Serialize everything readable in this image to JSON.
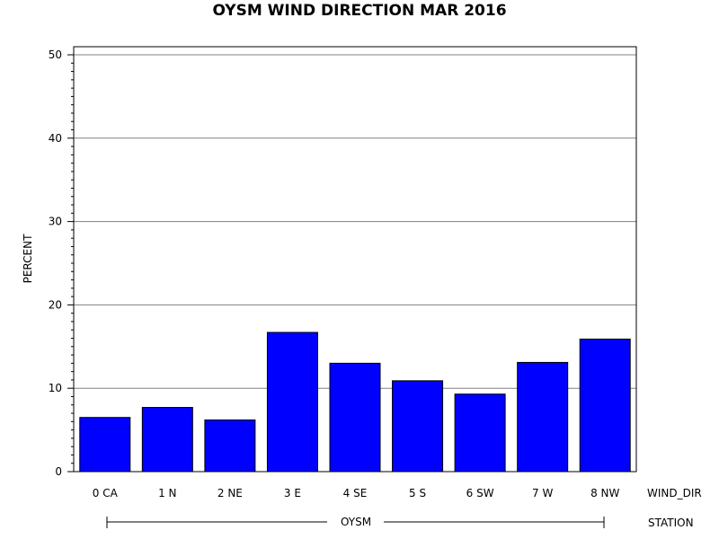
{
  "chart_data": {
    "type": "bar",
    "title": "OYSM WIND DIRECTION MAR 2016",
    "ylabel": "PERCENT",
    "xlabel": "WIND_DIR",
    "group_label": "STATION",
    "group_value": "OYSM",
    "categories": [
      "0 CA",
      "1 N",
      "2 NE",
      "3 E",
      "4 SE",
      "5 S",
      "6 SW",
      "7 W",
      "8 NW"
    ],
    "values": [
      6.5,
      7.7,
      6.2,
      16.7,
      13.0,
      10.9,
      9.3,
      13.1,
      15.9
    ],
    "ylim": [
      0,
      50
    ],
    "yticks": [
      0,
      10,
      20,
      30,
      40,
      50
    ],
    "grid": true,
    "bar_color": "#0000ff"
  }
}
